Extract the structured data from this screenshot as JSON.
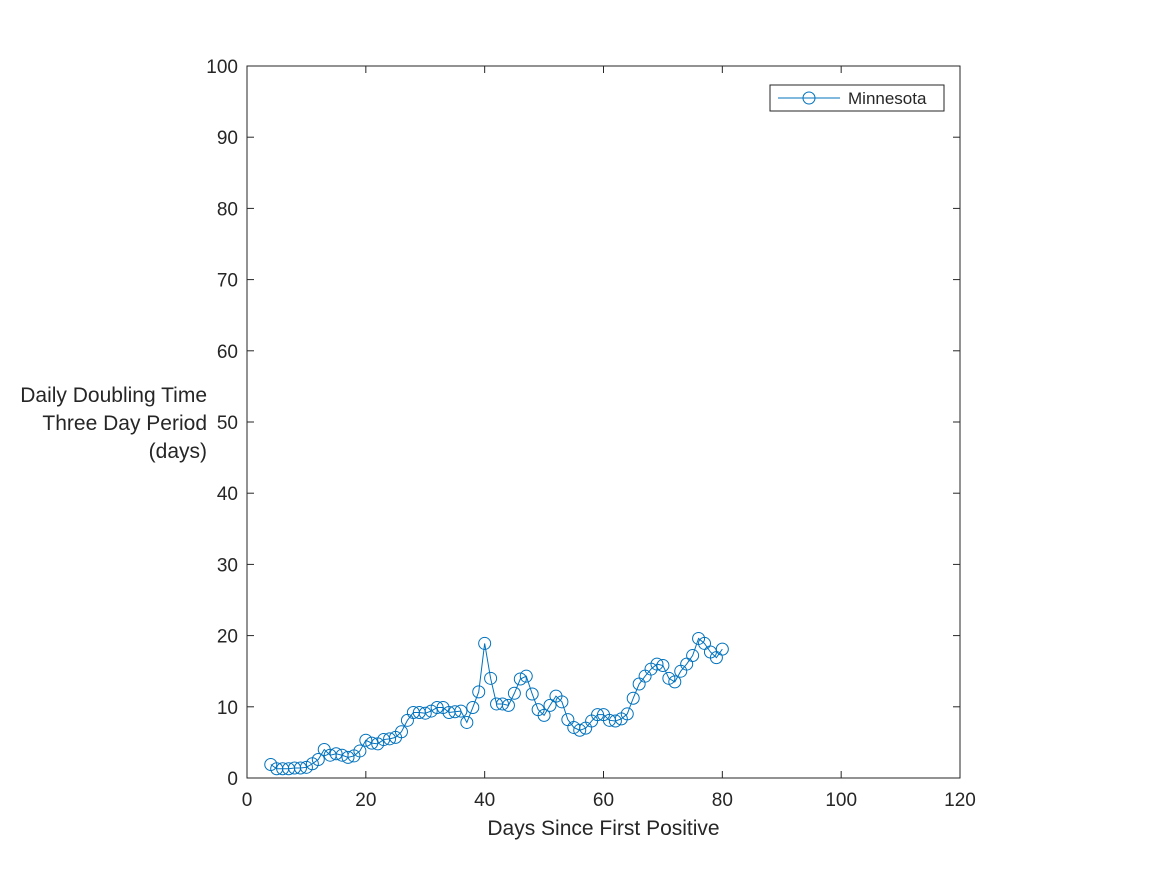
{
  "chart_data": {
    "type": "line",
    "title": "",
    "xlabel": "Days Since First Positive",
    "ylabel_lines": [
      "Daily Doubling Time",
      "Three Day Period",
      "(days)"
    ],
    "xlim": [
      0,
      120
    ],
    "ylim": [
      0,
      100
    ],
    "xticks": [
      0,
      20,
      40,
      60,
      80,
      100,
      120
    ],
    "yticks": [
      0,
      10,
      20,
      30,
      40,
      50,
      60,
      70,
      80,
      90,
      100
    ],
    "grid": false,
    "legend_position": "top-right",
    "marker": "circle-open",
    "series": [
      {
        "name": "Minnesota",
        "color": "#0072BD",
        "x": [
          4,
          5,
          6,
          7,
          8,
          9,
          10,
          11,
          12,
          13,
          14,
          15,
          16,
          17,
          18,
          19,
          20,
          21,
          22,
          23,
          24,
          25,
          26,
          27,
          28,
          29,
          30,
          31,
          32,
          33,
          34,
          35,
          36,
          37,
          38,
          39,
          40,
          41,
          42,
          43,
          44,
          45,
          46,
          47,
          48,
          49,
          50,
          51,
          52,
          53,
          54,
          55,
          56,
          57,
          58,
          59,
          60,
          61,
          62,
          63,
          64,
          65,
          66,
          67,
          68,
          69,
          70,
          71,
          72,
          73,
          74,
          75,
          76,
          77,
          78,
          79,
          80
        ],
        "y": [
          1.9,
          1.3,
          1.3,
          1.3,
          1.4,
          1.4,
          1.5,
          2.0,
          2.6,
          4.0,
          3.2,
          3.4,
          3.2,
          2.9,
          3.1,
          3.8,
          5.3,
          4.9,
          4.8,
          5.4,
          5.5,
          5.7,
          6.5,
          8.1,
          9.2,
          9.2,
          9.1,
          9.4,
          9.9,
          9.9,
          9.2,
          9.3,
          9.4,
          7.8,
          9.9,
          12.1,
          18.9,
          14.0,
          10.4,
          10.4,
          10.2,
          11.9,
          13.9,
          14.3,
          11.8,
          9.6,
          8.8,
          10.2,
          11.5,
          10.7,
          8.2,
          7.1,
          6.7,
          7.0,
          8.0,
          8.9,
          8.9,
          8.1,
          8.0,
          8.3,
          9.0,
          11.2,
          13.2,
          14.3,
          15.3,
          16.0,
          15.8,
          14.0,
          13.5,
          15.0,
          16.0,
          17.2,
          19.6,
          18.9,
          17.7,
          16.9,
          18.1
        ]
      }
    ]
  }
}
